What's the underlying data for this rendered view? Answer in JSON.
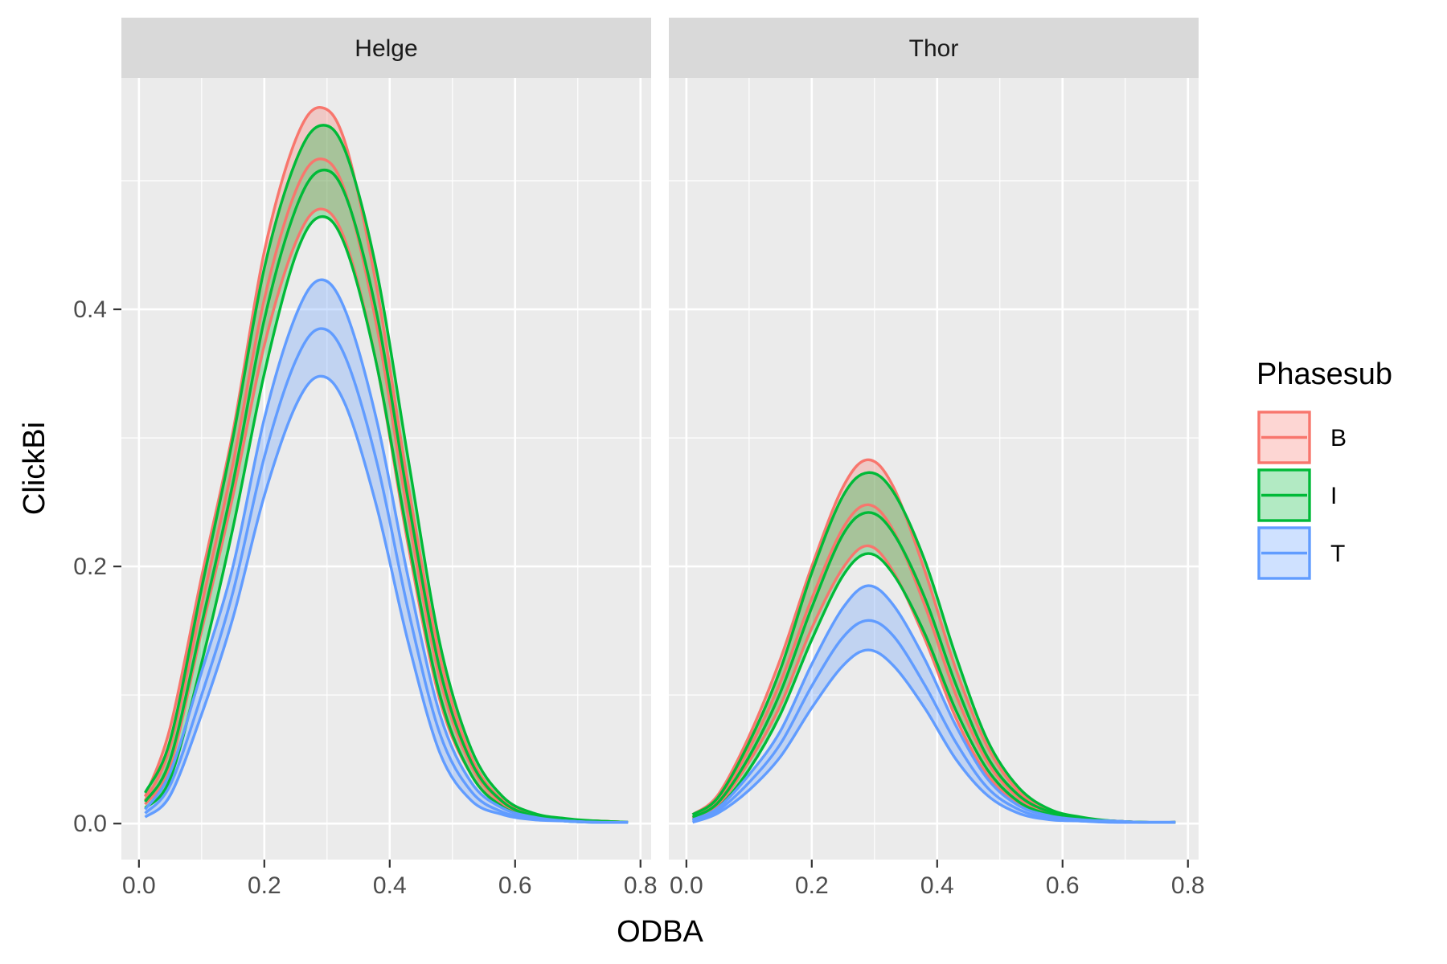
{
  "chart_data": {
    "type": "area",
    "facet_variable": "Animal",
    "facets": [
      "Helge",
      "Thor"
    ],
    "xlabel": "ODBA",
    "ylabel": "ClickBi",
    "xlim": [
      -0.028,
      0.817
    ],
    "ylim": [
      -0.028,
      0.58
    ],
    "x_ticks": [
      0.0,
      0.2,
      0.4,
      0.6,
      0.8
    ],
    "x_tick_labels": [
      "0.0",
      "0.2",
      "0.4",
      "0.6",
      "0.8"
    ],
    "y_ticks": [
      0.0,
      0.2,
      0.4
    ],
    "y_tick_labels": [
      "0.0",
      "0.2",
      "0.4"
    ],
    "legend": {
      "title": "Phasesub",
      "position": "right",
      "entries": [
        "B",
        "I",
        "T"
      ]
    },
    "grid": true,
    "x": [
      0.01,
      0.05,
      0.1,
      0.15,
      0.2,
      0.25,
      0.29,
      0.33,
      0.38,
      0.43,
      0.48,
      0.53,
      0.58,
      0.63,
      0.68,
      0.73,
      0.78
    ],
    "series": [
      {
        "name": "B",
        "color": "#F8766D",
        "fill_alpha": 0.3,
        "panels": [
          {
            "facet": "Helge",
            "fit": [
              0.018,
              0.06,
              0.17,
              0.28,
              0.408,
              0.492,
              0.517,
              0.49,
              0.385,
              0.238,
              0.113,
              0.045,
              0.016,
              0.006,
              0.003,
              0.002,
              0.001
            ],
            "lower": [
              0.015,
              0.045,
              0.15,
              0.255,
              0.372,
              0.452,
              0.478,
              0.452,
              0.355,
              0.215,
              0.096,
              0.038,
              0.014,
              0.005,
              0.003,
              0.002,
              0.001
            ],
            "upper": [
              0.021,
              0.075,
              0.192,
              0.305,
              0.445,
              0.532,
              0.557,
              0.528,
              0.415,
              0.262,
              0.13,
              0.052,
              0.018,
              0.007,
              0.003,
              0.002,
              0.001
            ]
          },
          {
            "facet": "Thor",
            "fit": [
              0.005,
              0.018,
              0.058,
              0.11,
              0.175,
              0.23,
              0.248,
              0.228,
              0.17,
              0.1,
              0.048,
              0.02,
              0.008,
              0.003,
              0.002,
              0.001,
              0.001
            ],
            "lower": [
              0.004,
              0.014,
              0.048,
              0.092,
              0.152,
              0.199,
              0.216,
              0.196,
              0.144,
              0.082,
              0.038,
              0.016,
              0.006,
              0.003,
              0.002,
              0.001,
              0.001
            ],
            "upper": [
              0.007,
              0.022,
              0.068,
              0.128,
              0.2,
              0.262,
              0.283,
              0.262,
              0.197,
              0.12,
              0.06,
              0.025,
              0.01,
              0.004,
              0.002,
              0.001,
              0.001
            ]
          }
        ]
      },
      {
        "name": "I",
        "color": "#00BA38",
        "fill_alpha": 0.3,
        "panels": [
          {
            "facet": "Helge",
            "fit": [
              0.017,
              0.05,
              0.155,
              0.265,
              0.392,
              0.478,
              0.508,
              0.488,
              0.395,
              0.25,
              0.12,
              0.048,
              0.017,
              0.006,
              0.003,
              0.002,
              0.001
            ],
            "lower": [
              0.012,
              0.035,
              0.125,
              0.23,
              0.35,
              0.442,
              0.472,
              0.448,
              0.355,
              0.22,
              0.1,
              0.038,
              0.013,
              0.005,
              0.002,
              0.001,
              0.001
            ],
            "upper": [
              0.024,
              0.065,
              0.183,
              0.3,
              0.432,
              0.515,
              0.543,
              0.522,
              0.428,
              0.282,
              0.14,
              0.058,
              0.021,
              0.008,
              0.004,
              0.002,
              0.001
            ]
          },
          {
            "facet": "Thor",
            "fit": [
              0.005,
              0.016,
              0.052,
              0.102,
              0.168,
              0.225,
              0.242,
              0.226,
              0.176,
              0.108,
              0.052,
              0.022,
              0.009,
              0.004,
              0.002,
              0.001,
              0.001
            ],
            "lower": [
              0.003,
              0.012,
              0.042,
              0.085,
              0.143,
              0.193,
              0.21,
              0.194,
              0.148,
              0.088,
              0.042,
              0.017,
              0.007,
              0.003,
              0.002,
              0.001,
              0.001
            ],
            "upper": [
              0.007,
              0.02,
              0.063,
              0.12,
              0.195,
              0.255,
              0.273,
              0.258,
              0.205,
              0.13,
              0.065,
              0.028,
              0.011,
              0.005,
              0.002,
              0.001,
              0.001
            ]
          }
        ]
      },
      {
        "name": "T",
        "color": "#619CFF",
        "fill_alpha": 0.3,
        "panels": [
          {
            "facet": "Helge",
            "fit": [
              0.008,
              0.03,
              0.1,
              0.18,
              0.285,
              0.36,
              0.385,
              0.362,
              0.28,
              0.165,
              0.07,
              0.025,
              0.009,
              0.004,
              0.002,
              0.001,
              0.001
            ],
            "lower": [
              0.005,
              0.022,
              0.085,
              0.16,
              0.255,
              0.325,
              0.348,
              0.325,
              0.245,
              0.14,
              0.055,
              0.018,
              0.007,
              0.003,
              0.002,
              0.001,
              0.001
            ],
            "upper": [
              0.011,
              0.04,
              0.118,
              0.2,
              0.315,
              0.395,
              0.423,
              0.398,
              0.312,
              0.19,
              0.085,
              0.032,
              0.012,
              0.005,
              0.002,
              0.001,
              0.001
            ]
          },
          {
            "facet": "Thor",
            "fit": [
              0.002,
              0.01,
              0.032,
              0.062,
              0.107,
              0.145,
              0.158,
              0.146,
              0.108,
              0.063,
              0.028,
              0.011,
              0.004,
              0.002,
              0.001,
              0.001,
              0.001
            ],
            "lower": [
              0.001,
              0.008,
              0.026,
              0.052,
              0.09,
              0.123,
              0.135,
              0.123,
              0.09,
              0.05,
              0.022,
              0.008,
              0.003,
              0.002,
              0.001,
              0.001,
              0.001
            ],
            "upper": [
              0.003,
              0.012,
              0.038,
              0.072,
              0.124,
              0.168,
              0.185,
              0.17,
              0.128,
              0.076,
              0.035,
              0.014,
              0.006,
              0.003,
              0.002,
              0.001,
              0.001
            ]
          }
        ]
      }
    ]
  }
}
